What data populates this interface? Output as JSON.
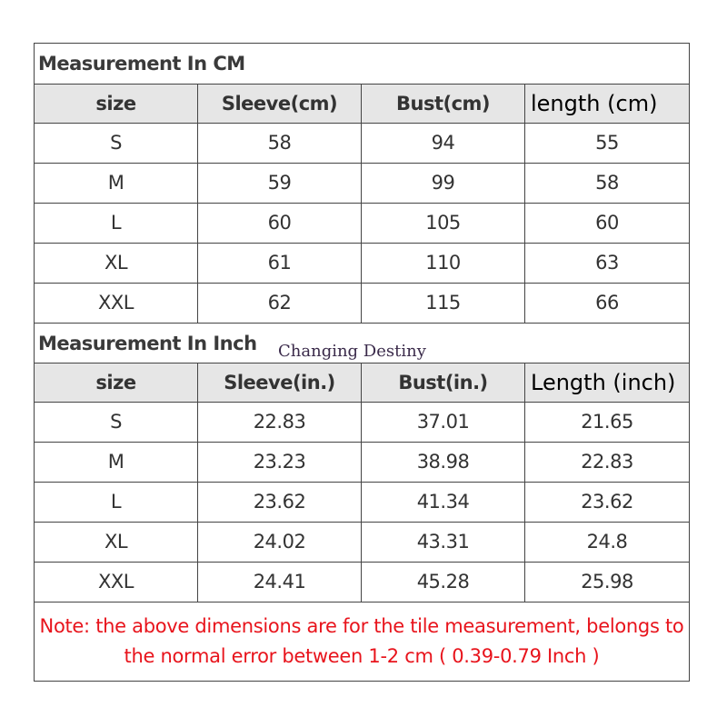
{
  "cm_table": {
    "title": "Measurement In CM",
    "headers": [
      "size",
      "Sleeve(cm)",
      "Bust(cm)",
      "length (cm)"
    ],
    "rows": [
      [
        "S",
        "58",
        "94",
        "55"
      ],
      [
        "M",
        "59",
        "99",
        "58"
      ],
      [
        "L",
        "60",
        "105",
        "60"
      ],
      [
        "XL",
        "61",
        "110",
        "63"
      ],
      [
        "XXL",
        "62",
        "115",
        "66"
      ]
    ]
  },
  "inch_table": {
    "title": "Measurement In Inch",
    "headers": [
      "size",
      "Sleeve(in.)",
      "Bust(in.)",
      "Length (inch)"
    ],
    "rows": [
      [
        "S",
        "22.83",
        "37.01",
        "21.65"
      ],
      [
        "M",
        "23.23",
        "38.98",
        "22.83"
      ],
      [
        "L",
        "23.62",
        "41.34",
        "23.62"
      ],
      [
        "XL",
        "24.02",
        "43.31",
        "24.8"
      ],
      [
        "XXL",
        "24.41",
        "45.28",
        "25.98"
      ]
    ]
  },
  "watermark": "Changing Destiny",
  "note": {
    "line1": "Note: the above dimensions are for the tile measurement, belongs to",
    "line2": "the normal error between 1-2 cm ( 0.39-0.79  Inch )",
    "color": "#e8141c"
  }
}
